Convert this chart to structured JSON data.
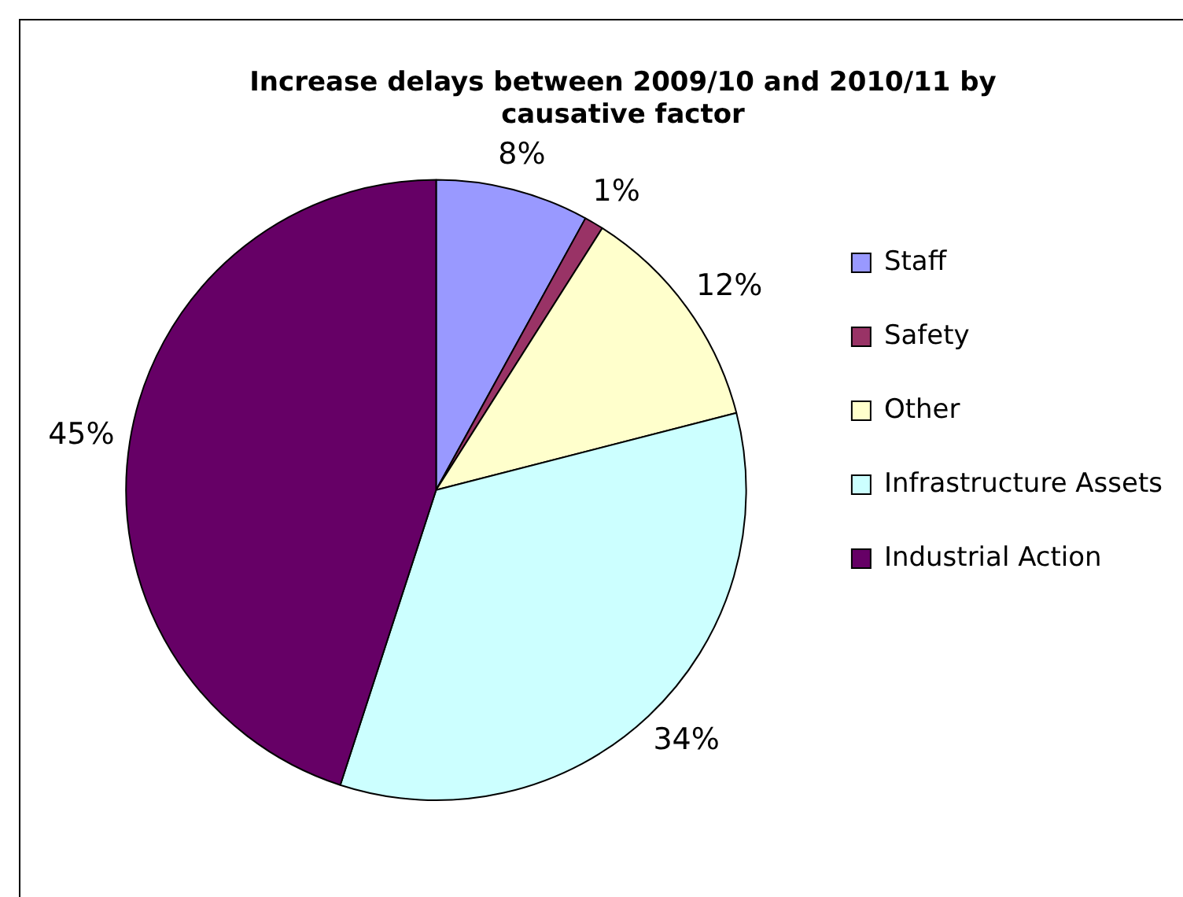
{
  "chart_data": {
    "type": "pie",
    "title": "Increase delays between 2009/10 and 2010/11 by causative factor",
    "categories": [
      "Staff",
      "Safety",
      "Other",
      "Infrastructure Assets",
      "Industrial Action"
    ],
    "values": [
      8,
      1,
      12,
      34,
      45
    ],
    "colors": [
      "#9999ff",
      "#993366",
      "#ffffcc",
      "#ccffff",
      "#660066"
    ],
    "value_labels": [
      "8%",
      "1%",
      "12%",
      "34%",
      "45%"
    ],
    "legend": "right"
  }
}
